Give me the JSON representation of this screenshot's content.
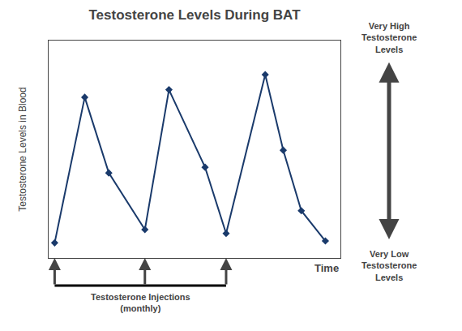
{
  "chart_data": {
    "type": "line",
    "title": "Testosterone Levels During BAT",
    "xlabel": "Time",
    "ylabel": "Testosterone Levels in Blood",
    "x": [
      0,
      1.0,
      1.8,
      3.0,
      3.8,
      5.0,
      5.7,
      7.0,
      7.6,
      8.2,
      9.0
    ],
    "values": [
      0.03,
      0.8,
      0.4,
      0.1,
      0.84,
      0.43,
      0.08,
      0.92,
      0.52,
      0.2,
      0.04
    ],
    "color": "#1a3a6b",
    "marker": "diamond",
    "xlim": [
      -0.2,
      9.5
    ],
    "ylim": [
      -0.05,
      1.1
    ],
    "xticks": [],
    "yticks": [],
    "tick_labels": false,
    "grid": false,
    "annotations": [
      {
        "text": "Testosterone Injections\n(monthly)",
        "x": [
          0.0,
          3.0,
          5.7
        ]
      },
      {
        "text": "Very High\nTestosterone\nLevels"
      },
      {
        "text": "Very Low\nTestosterone\nLevels"
      }
    ]
  }
}
